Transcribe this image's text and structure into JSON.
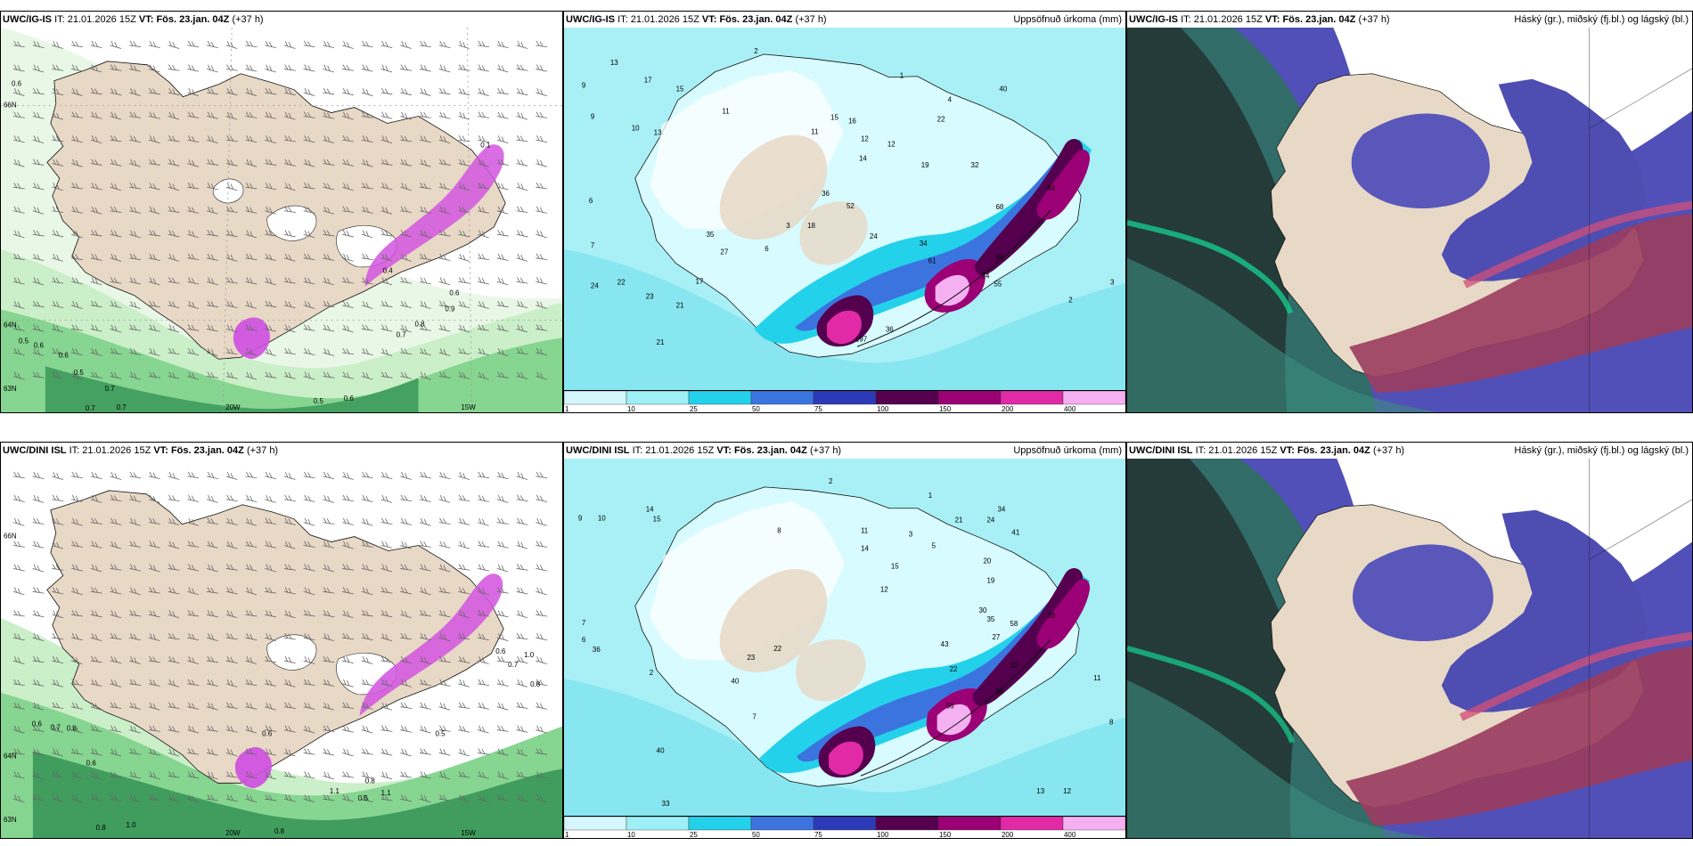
{
  "page": {
    "layout": "2x3 forecast map comparison"
  },
  "panels": [
    {
      "model": "UWC/IG-IS",
      "it_label": "IT:",
      "issue_time": "21.01.2026 15Z",
      "vt_label": "VT:",
      "valid_time": "Fös. 23.jan. 04Z",
      "lead": "(+37 h)",
      "right_title": "",
      "kind": "wind",
      "lon_labels": [
        "20W",
        "15W"
      ],
      "lat_labels": [
        "66N",
        "64N",
        "63N"
      ],
      "value_labels": [
        "0.6",
        "0.5",
        "0.6",
        "0.6",
        "0.5",
        "0.7",
        "0.7",
        "0.7",
        "0.5",
        "0.6",
        "0.7",
        "0.8",
        "0.9",
        "0.6",
        "0.4",
        "0.1"
      ]
    },
    {
      "model": "UWC/IG-IS",
      "it_label": "IT:",
      "issue_time": "21.01.2026 15Z",
      "vt_label": "VT:",
      "valid_time": "Fös. 23.jan. 04Z",
      "lead": "(+37 h)",
      "right_title": "Uppsöfnuð úrkoma (mm)",
      "kind": "precip",
      "legend_ticks": [
        "1",
        "10",
        "25",
        "50",
        "75",
        "100",
        "150",
        "200",
        "400"
      ],
      "value_labels": [
        "2",
        "13",
        "9",
        "17",
        "15",
        "11",
        "16",
        "12",
        "9",
        "10",
        "13",
        "7",
        "6",
        "24",
        "22",
        "23",
        "21",
        "17",
        "35",
        "21",
        "27",
        "3",
        "6",
        "18",
        "36",
        "52",
        "24",
        "19",
        "22",
        "32",
        "11",
        "15",
        "14",
        "12",
        "68",
        "34",
        "49",
        "61",
        "84",
        "24",
        "197",
        "36",
        "55",
        "4",
        "1",
        "3",
        "2",
        "40"
      ]
    },
    {
      "model": "UWC/IG-IS",
      "it_label": "IT:",
      "issue_time": "21.01.2026 15Z",
      "vt_label": "VT:",
      "valid_time": "Fös. 23.jan. 04Z",
      "lead": "(+37 h)",
      "right_title": "Háský (gr.), miðský (fj.bl.) og lágský (bl.)",
      "kind": "clouds"
    },
    {
      "model": "UWC/DINI ISL",
      "it_label": "IT:",
      "issue_time": "21.01.2026 15Z",
      "vt_label": "VT:",
      "valid_time": "Fös. 23.jan. 04Z",
      "lead": "(+37 h)",
      "right_title": "",
      "kind": "wind",
      "lon_labels": [
        "20W",
        "15W"
      ],
      "lat_labels": [
        "66N",
        "64N",
        "63N"
      ],
      "value_labels": [
        "0.6",
        "0.7",
        "0.6",
        "0.6",
        "0.8",
        "1.0",
        "0.8",
        "0.5",
        "0.8",
        "1.1",
        "1.1",
        "0.6",
        "0.5",
        "0.8",
        "0.7",
        "1.0",
        "0.6"
      ]
    },
    {
      "model": "UWC/DINI ISL",
      "it_label": "IT:",
      "issue_time": "21.01.2026 15Z",
      "vt_label": "VT:",
      "valid_time": "Fös. 23.jan. 04Z",
      "lead": "(+37 h)",
      "right_title": "Uppsöfnuð úrkoma (mm)",
      "kind": "precip",
      "legend_ticks": [
        "1",
        "10",
        "25",
        "50",
        "75",
        "100",
        "150",
        "200",
        "400"
      ],
      "value_labels": [
        "2",
        "9",
        "10",
        "14",
        "15",
        "7",
        "6",
        "36",
        "2",
        "8",
        "11",
        "14",
        "12",
        "15",
        "23",
        "22",
        "40",
        "40",
        "7",
        "33",
        "13",
        "12",
        "21",
        "24",
        "34",
        "41",
        "20",
        "19",
        "30",
        "35",
        "27",
        "58",
        "43",
        "96",
        "32",
        "56",
        "39",
        "22",
        "8",
        "11",
        "1",
        "3",
        "5"
      ]
    },
    {
      "model": "UWC/DINI ISL",
      "it_label": "IT:",
      "issue_time": "21.01.2026 15Z",
      "vt_label": "VT:",
      "valid_time": "Fös. 23.jan. 04Z",
      "lead": "(+37 h)",
      "right_title": "Háský (gr.), miðský (fj.bl.) og lágský (bl.)",
      "kind": "clouds"
    }
  ],
  "colors": {
    "land": "#e8d8c6",
    "sea": "#ffffff",
    "wind_light": "#cbefc8",
    "wind_mid": "#86d590",
    "wind_dark": "#2d8d4f",
    "precip_1": "#d5f7fb",
    "precip_10": "#9ef0f6",
    "precip_25": "#24d1ea",
    "precip_50": "#3c74df",
    "precip_75": "#2d3ab8",
    "precip_100": "#54004f",
    "precip_150": "#9b0075",
    "precip_200": "#e22aa7",
    "precip_400": "#f5b0f1",
    "cloud_high": "#1d1f24",
    "cloud_mid": "#9a3d5f",
    "cloud_low": "#4e4db2",
    "cloud_green": "#16c98b"
  },
  "map_labels": {
    "graticule": [
      "66N",
      "64N",
      "63N",
      "20W",
      "15W"
    ]
  }
}
